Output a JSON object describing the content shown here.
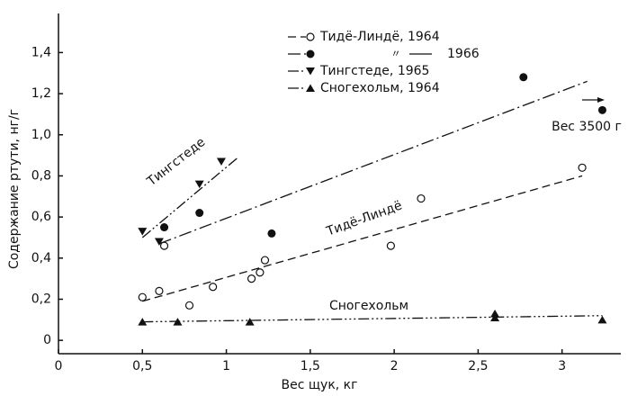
{
  "chart_data": {
    "type": "scatter",
    "x_label": "Вес щук, кг",
    "y_label": "Содержание ртути, нг/г",
    "xlim": [
      0,
      3.35
    ],
    "ylim": [
      -0.065,
      1.59
    ],
    "xticks": [
      0,
      {
        "value": 0.5,
        "label": "0,5"
      },
      1,
      {
        "value": 1.5,
        "label": "1,5"
      },
      2,
      {
        "value": 2.5,
        "label": "2,5"
      },
      3
    ],
    "yticks": [
      0,
      {
        "value": 0.2,
        "label": "0,2"
      },
      {
        "value": 0.4,
        "label": "0,4"
      },
      {
        "value": 0.6,
        "label": "0,6"
      },
      {
        "value": 0.8,
        "label": "0,8"
      },
      {
        "value": 1.0,
        "label": "1,0"
      },
      {
        "value": 1.2,
        "label": "1,2"
      },
      {
        "value": 1.4,
        "label": "1,4"
      }
    ],
    "legend_ditto": "〃",
    "series": [
      {
        "name": "Тидё-Линдё, 1964",
        "marker": "open-circle",
        "dash": "9 5",
        "color": "#111",
        "x": [
          0.5,
          0.6,
          0.63,
          0.78,
          0.92,
          1.15,
          1.2,
          1.23,
          1.98,
          2.16,
          3.12
        ],
        "values": [
          0.21,
          0.24,
          0.46,
          0.17,
          0.26,
          0.3,
          0.33,
          0.39,
          0.46,
          0.69,
          0.84
        ],
        "fit_x": [
          0.5,
          3.12
        ],
        "fit_y": [
          0.19,
          0.8
        ]
      },
      {
        "name": "1966",
        "marker": "circle",
        "dash": "14 4 2 4",
        "color": "#111",
        "x": [
          0.63,
          0.84,
          1.27,
          2.77,
          3.24
        ],
        "values": [
          0.55,
          0.62,
          0.52,
          1.28,
          1.12
        ],
        "fit_x": [
          0.6,
          3.15
        ],
        "fit_y": [
          0.47,
          1.26
        ]
      },
      {
        "name": "Тингстеде, 1965",
        "marker": "triangle-down",
        "dash": "12 3 2 3 2 3",
        "color": "#111",
        "x": [
          0.5,
          0.6,
          0.84,
          0.97
        ],
        "values": [
          0.53,
          0.48,
          0.76,
          0.87
        ],
        "fit_x": [
          0.5,
          1.07
        ],
        "fit_y": [
          0.5,
          0.89
        ]
      },
      {
        "name": "Сногехольм, 1964",
        "marker": "triangle-up",
        "dash": "12 3 2 3 2 3 2 3",
        "color": "#111",
        "x": [
          0.5,
          0.71,
          1.14,
          2.6,
          2.6,
          3.24
        ],
        "values": [
          0.09,
          0.09,
          0.09,
          0.11,
          0.13,
          0.1
        ],
        "fit_x": [
          0.5,
          3.24
        ],
        "fit_y": [
          0.09,
          0.12
        ]
      }
    ],
    "annotations": [
      "Тингстеде",
      "Тидё-Линдё",
      "Сногехольм",
      "Вес 3500 г"
    ]
  }
}
